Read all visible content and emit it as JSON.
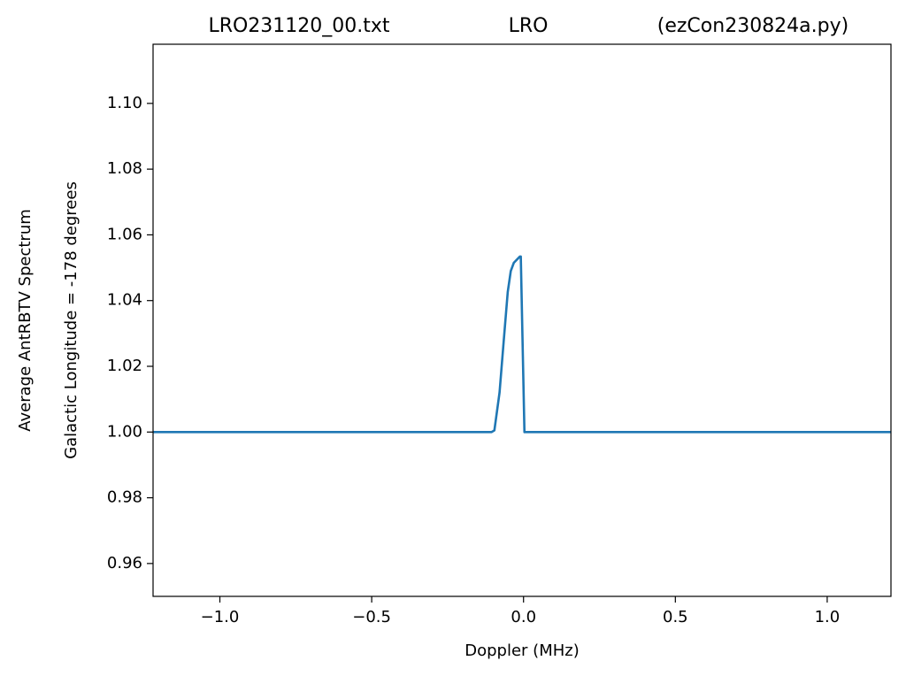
{
  "chart_data": {
    "type": "line",
    "title_parts": [
      "LRO231120_00.txt",
      "LRO",
      "(ezCon230824a.py)"
    ],
    "x_label": "Doppler (MHz)",
    "y_label_lines": [
      "Average AntRBTV Spectrum",
      "Galactic Longitude = -178 degrees"
    ],
    "x": [
      -1.22,
      -0.105,
      -0.096,
      -0.079,
      -0.065,
      -0.052,
      -0.042,
      -0.032,
      -0.012,
      -0.009,
      0.003,
      1.21
    ],
    "series": [
      {
        "color": "#1f77b4",
        "values": [
          1.0,
          1.0,
          1.0005,
          1.012,
          1.028,
          1.0426,
          1.049,
          1.0515,
          1.0534,
          1.0534,
          1.0,
          1.0
        ]
      }
    ],
    "xlim": [
      -1.22,
      1.21
    ],
    "ylim": [
      0.95,
      1.118
    ],
    "xticks": [
      {
        "value": -1.0,
        "label": "−1.0"
      },
      {
        "value": -0.5,
        "label": "−0.5"
      },
      {
        "value": 0.0,
        "label": "0.0"
      },
      {
        "value": 0.5,
        "label": "0.5"
      },
      {
        "value": 1.0,
        "label": "1.0"
      }
    ],
    "yticks": [
      {
        "value": 0.96,
        "label": "0.96"
      },
      {
        "value": 0.98,
        "label": "0.98"
      },
      {
        "value": 1.0,
        "label": "1.00"
      },
      {
        "value": 1.02,
        "label": "1.02"
      },
      {
        "value": 1.04,
        "label": "1.04"
      },
      {
        "value": 1.06,
        "label": "1.06"
      },
      {
        "value": 1.08,
        "label": "1.08"
      },
      {
        "value": 1.1,
        "label": "1.10"
      }
    ],
    "grid": false
  }
}
